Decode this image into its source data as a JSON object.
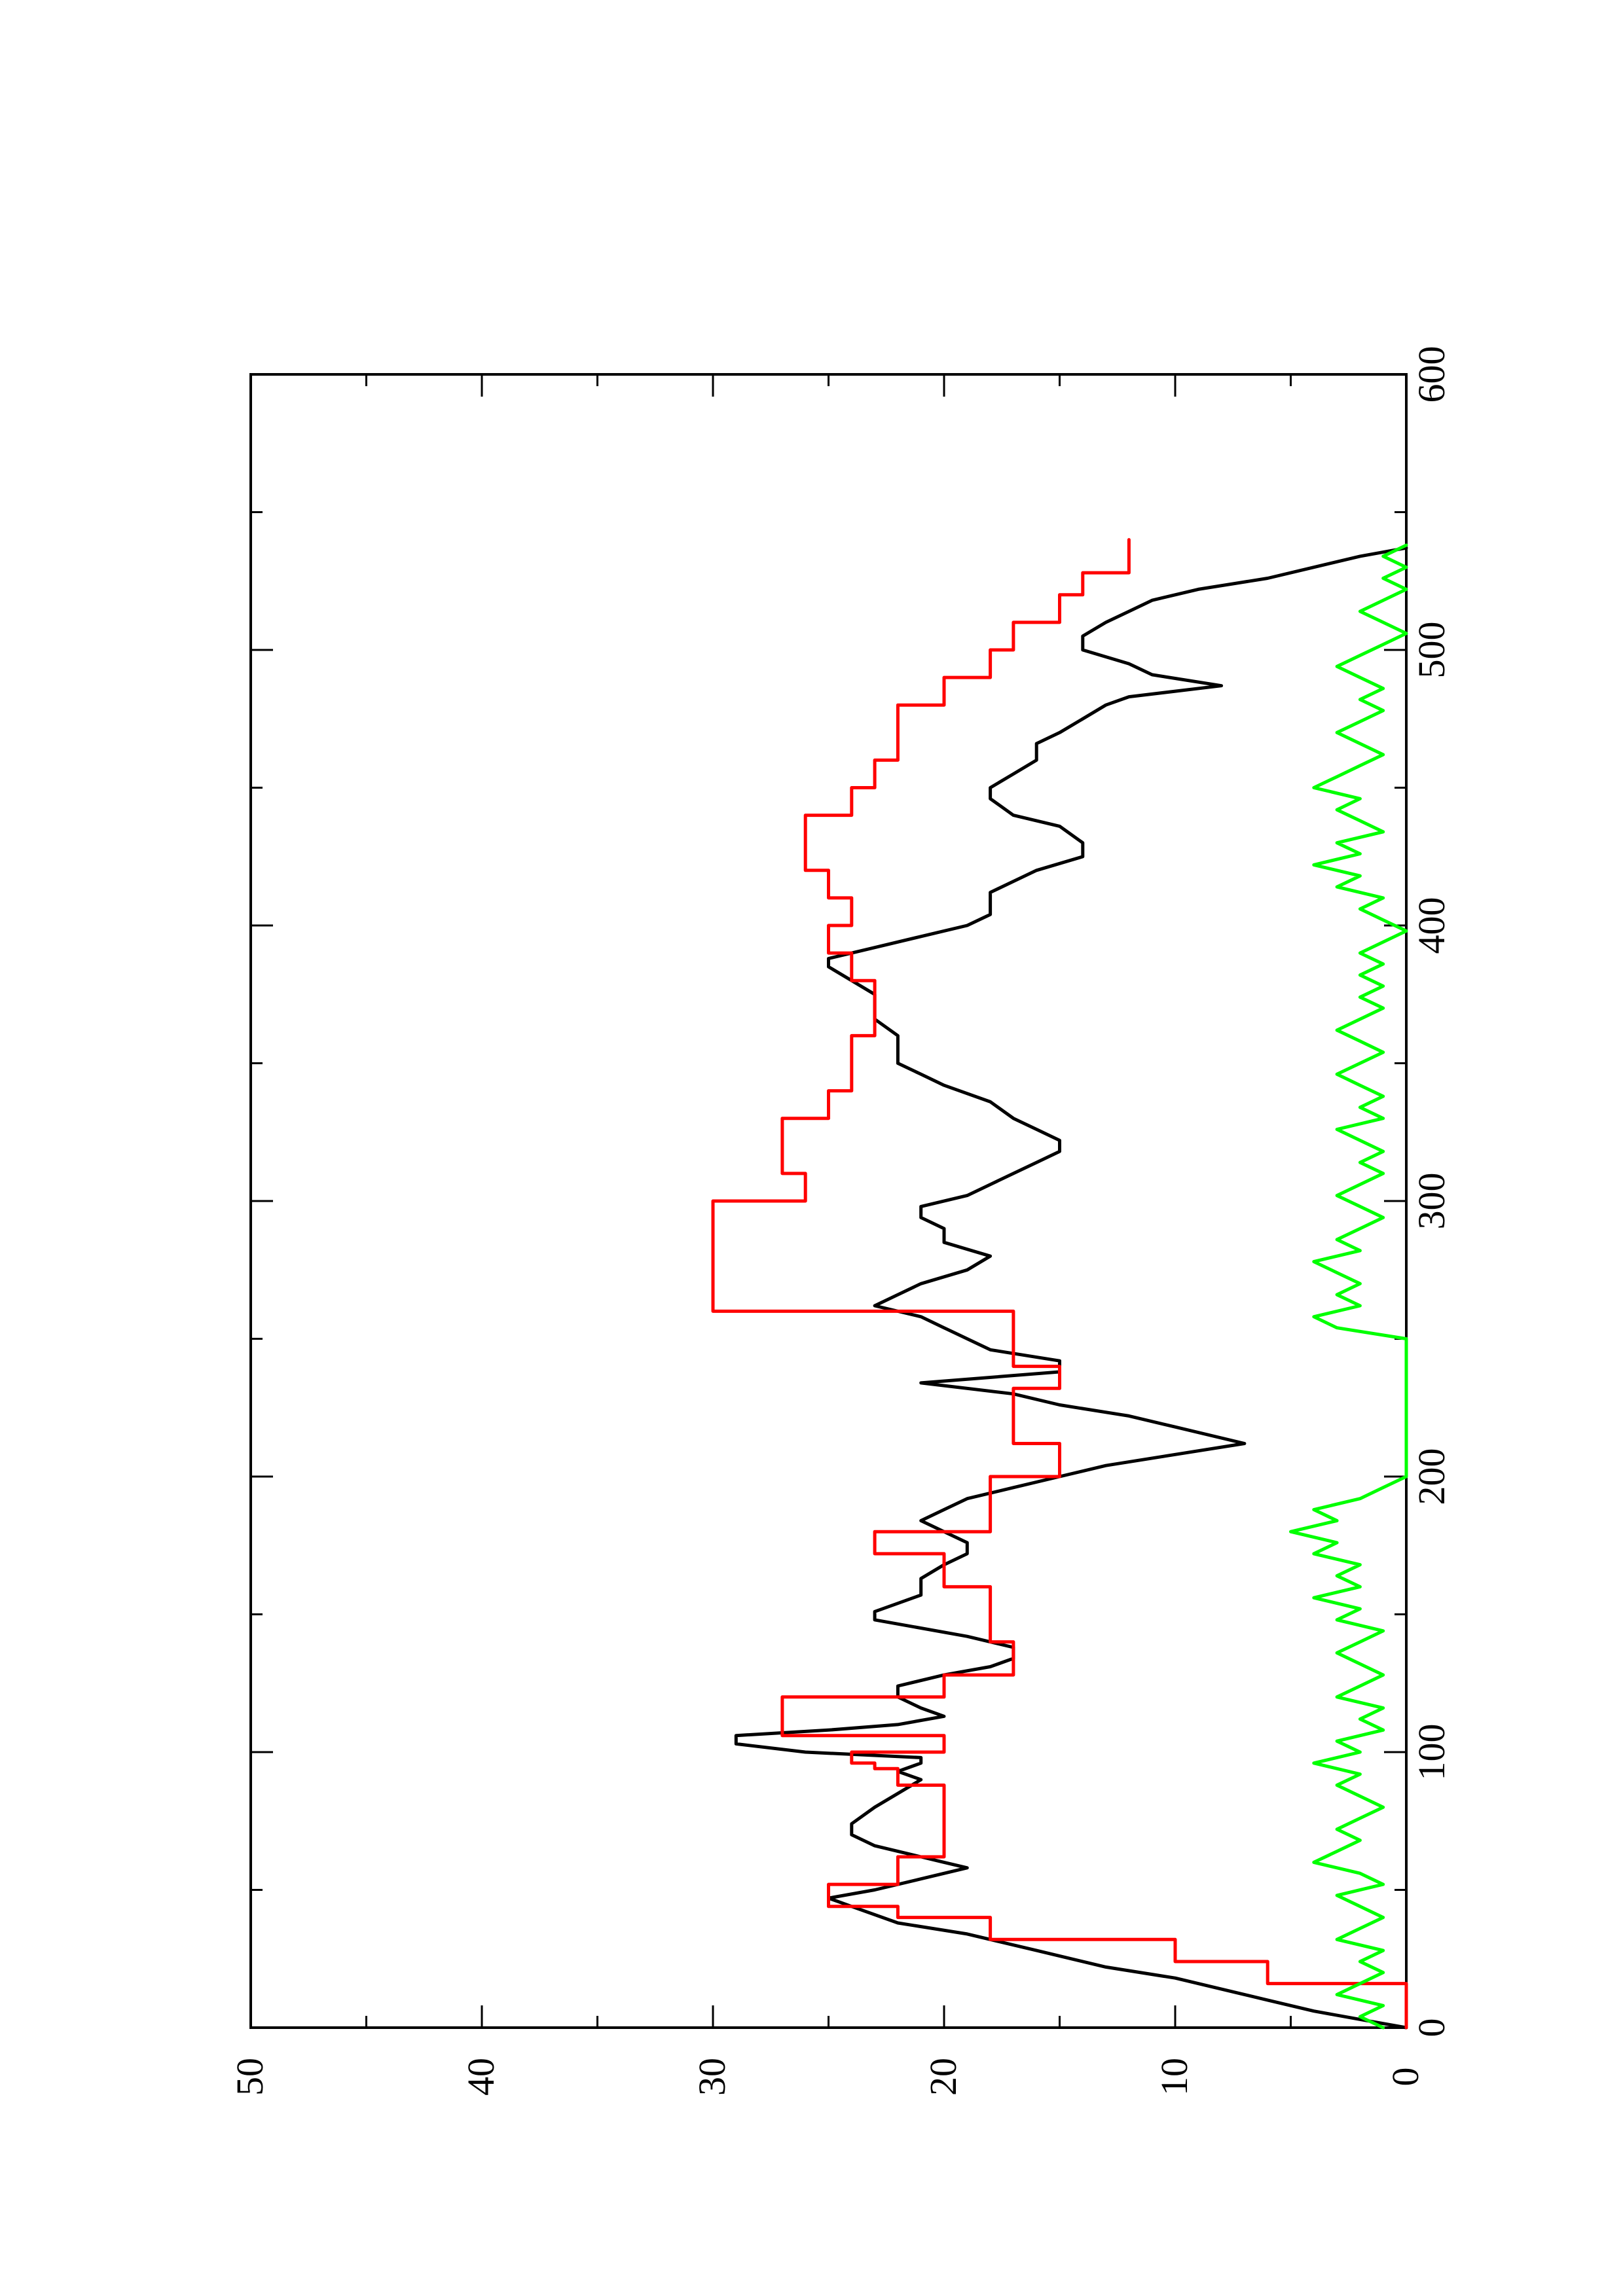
{
  "chart_data": {
    "type": "line",
    "title": "",
    "xlabel": "",
    "ylabel": "",
    "orientation": "rotated-90-ccw",
    "xlim": [
      0,
      600
    ],
    "ylim": [
      0,
      50
    ],
    "x_ticks": [
      0,
      100,
      200,
      300,
      400,
      500,
      600
    ],
    "y_ticks": [
      0,
      10,
      20,
      30,
      40,
      50
    ],
    "x_tick_labels": [
      "0",
      "100",
      "200",
      "300",
      "400",
      "500",
      "600"
    ],
    "y_tick_labels": [
      "0",
      "10",
      "20",
      "30",
      "40",
      "50"
    ],
    "grid": false,
    "legend": "none",
    "series": [
      {
        "color": "#000000",
        "x": [
          0,
          3,
          6,
          10,
          14,
          18,
          22,
          28,
          34,
          38,
          44,
          47,
          50,
          54,
          58,
          60,
          62,
          66,
          70,
          74,
          80,
          85,
          90,
          93,
          96,
          98,
          100,
          103,
          106,
          108,
          110,
          113,
          116,
          120,
          124,
          128,
          131,
          134,
          138,
          142,
          148,
          151,
          154,
          157,
          160,
          163,
          168,
          172,
          176,
          180,
          184,
          188,
          192,
          196,
          200,
          204,
          208,
          212,
          218,
          222,
          226,
          230,
          234,
          238,
          242,
          246,
          250,
          254,
          258,
          262,
          266,
          270,
          275,
          280,
          285,
          290,
          294,
          298,
          302,
          306,
          310,
          314,
          318,
          322,
          326,
          330,
          336,
          342,
          346,
          350,
          355,
          360,
          366,
          370,
          375,
          380,
          385,
          388,
          392,
          396,
          400,
          404,
          408,
          412,
          416,
          420,
          425,
          430,
          436,
          440,
          446,
          450,
          455,
          460,
          466,
          470,
          475,
          480,
          483,
          487,
          491,
          495,
          500,
          505,
          510,
          514,
          518,
          522,
          526,
          530,
          534,
          537
        ],
        "y": [
          0,
          2,
          4,
          6,
          8,
          10,
          13,
          16,
          19,
          22,
          24,
          25,
          23,
          21,
          19,
          20,
          21,
          23,
          24,
          24,
          23,
          22,
          21,
          22,
          21,
          21,
          26,
          29,
          29,
          25,
          22,
          20,
          21,
          22,
          22,
          20,
          18,
          17,
          17,
          19,
          23,
          23,
          22,
          21,
          21,
          21,
          20,
          19,
          19,
          20,
          21,
          20,
          19,
          17,
          15,
          13,
          10,
          7,
          10,
          12,
          15,
          17,
          21,
          15,
          15,
          18,
          19,
          20,
          21,
          23,
          22,
          21,
          19,
          18,
          20,
          20,
          21,
          21,
          19,
          18,
          17,
          16,
          15,
          15,
          16,
          17,
          18,
          20,
          21,
          22,
          22,
          22,
          23,
          23,
          23,
          24,
          25,
          25,
          23,
          21,
          19,
          18,
          18,
          18,
          17,
          16,
          14,
          14,
          15,
          17,
          18,
          18,
          17,
          16,
          16,
          15,
          14,
          13,
          12,
          8,
          11,
          12,
          14,
          14,
          13,
          12,
          11,
          9,
          6,
          4,
          2,
          0
        ]
      },
      {
        "color": "#ff0000",
        "x": [
          0,
          16,
          16,
          24,
          24,
          32,
          32,
          40,
          40,
          44,
          44,
          48,
          48,
          52,
          52,
          62,
          62,
          70,
          70,
          88,
          88,
          90,
          90,
          94,
          94,
          96,
          96,
          100,
          100,
          106,
          106,
          120,
          120,
          128,
          128,
          140,
          140,
          160,
          160,
          172,
          172,
          180,
          180,
          200,
          200,
          212,
          212,
          232,
          232,
          240,
          240,
          260,
          260,
          290,
          290,
          300,
          300,
          310,
          310,
          320,
          320,
          330,
          330,
          340,
          340,
          350,
          350,
          360,
          360,
          370,
          370,
          380,
          380,
          390,
          390,
          400,
          400,
          410,
          410,
          420,
          420,
          430,
          430,
          440,
          440,
          450,
          450,
          460,
          460,
          470,
          470,
          480,
          480,
          490,
          490,
          500,
          500,
          510,
          510,
          520,
          520,
          528,
          528,
          540
        ],
        "y": [
          0,
          0,
          6,
          6,
          10,
          10,
          18,
          18,
          22,
          22,
          25,
          25,
          25,
          25,
          22,
          22,
          20,
          20,
          20,
          20,
          22,
          22,
          22,
          22,
          23,
          23,
          24,
          24,
          20,
          20,
          27,
          27,
          20,
          20,
          17,
          17,
          18,
          18,
          20,
          20,
          23,
          23,
          18,
          18,
          15,
          15,
          17,
          17,
          15,
          15,
          17,
          17,
          30,
          30,
          30,
          30,
          26,
          26,
          27,
          27,
          27,
          27,
          25,
          25,
          24,
          24,
          24,
          24,
          23,
          23,
          23,
          23,
          24,
          24,
          25,
          25,
          24,
          24,
          25,
          25,
          26,
          26,
          26,
          26,
          24,
          24,
          23,
          23,
          22,
          22,
          22,
          22,
          20,
          20,
          18,
          18,
          17,
          17,
          15,
          15,
          14,
          14,
          12,
          12
        ]
      },
      {
        "color": "#00ff00",
        "x": [
          0,
          4,
          8,
          12,
          16,
          20,
          24,
          28,
          32,
          36,
          40,
          44,
          48,
          52,
          56,
          60,
          64,
          68,
          72,
          76,
          80,
          84,
          88,
          92,
          96,
          100,
          104,
          108,
          112,
          116,
          120,
          124,
          128,
          132,
          136,
          140,
          144,
          148,
          152,
          156,
          160,
          164,
          168,
          172,
          176,
          180,
          184,
          188,
          192,
          196,
          200,
          210,
          220,
          230,
          240,
          250,
          254,
          258,
          262,
          266,
          270,
          274,
          278,
          282,
          286,
          290,
          294,
          298,
          302,
          306,
          310,
          314,
          318,
          322,
          326,
          330,
          334,
          338,
          342,
          346,
          350,
          354,
          358,
          362,
          366,
          370,
          374,
          378,
          382,
          386,
          390,
          394,
          398,
          402,
          406,
          410,
          414,
          418,
          422,
          426,
          430,
          434,
          438,
          442,
          446,
          450,
          454,
          458,
          462,
          466,
          470,
          474,
          478,
          482,
          486,
          490,
          494,
          498,
          502,
          506,
          510,
          514,
          518,
          522,
          526,
          530,
          534,
          538
        ],
        "y": [
          1,
          2,
          1,
          3,
          2,
          1,
          2,
          1,
          3,
          2,
          1,
          2,
          3,
          1,
          2,
          4,
          3,
          2,
          3,
          2,
          1,
          2,
          3,
          2,
          4,
          2,
          3,
          1,
          2,
          1,
          3,
          2,
          1,
          2,
          3,
          2,
          1,
          3,
          2,
          4,
          2,
          3,
          2,
          4,
          3,
          5,
          3,
          4,
          2,
          1,
          0,
          0,
          0,
          0,
          0,
          0,
          3,
          4,
          2,
          3,
          2,
          3,
          4,
          2,
          3,
          2,
          1,
          2,
          3,
          2,
          1,
          2,
          1,
          2,
          3,
          1,
          2,
          1,
          2,
          3,
          2,
          1,
          2,
          3,
          2,
          1,
          2,
          1,
          2,
          1,
          2,
          1,
          0,
          1,
          2,
          1,
          3,
          2,
          4,
          2,
          3,
          1,
          2,
          3,
          2,
          4,
          3,
          2,
          1,
          2,
          3,
          2,
          1,
          2,
          1,
          2,
          3,
          2,
          1,
          0,
          1,
          2,
          1,
          0,
          1,
          0,
          1,
          0
        ]
      }
    ]
  }
}
